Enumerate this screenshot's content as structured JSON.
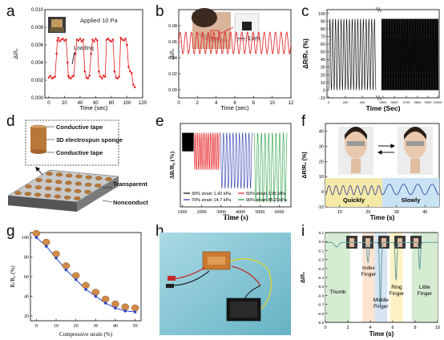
{
  "panel_labels": [
    "a",
    "b",
    "c",
    "d",
    "e",
    "f",
    "g",
    "h",
    "i"
  ],
  "chart_data": [
    {
      "id": "a",
      "type": "line",
      "annotation": "Applied 10 Pa",
      "arrow_label": "Loading",
      "xlabel": "Time (sec)",
      "ylabel": "ΔI/I₀",
      "xlim": [
        -5,
        120
      ],
      "ylim": [
        0,
        0.01
      ],
      "xticks": [
        "0",
        "20",
        "40",
        "60",
        "80",
        "100",
        "120"
      ],
      "yticks": [
        "0.000",
        "0.002",
        "0.004",
        "0.006",
        "0.008",
        "0.010"
      ],
      "color": "#e41a1c",
      "x": [
        0,
        2,
        4,
        6,
        8,
        10,
        11,
        12,
        14,
        16,
        18,
        20,
        22,
        24,
        25,
        26,
        28,
        30,
        32,
        34,
        36,
        38,
        40,
        42,
        44,
        46,
        48,
        50,
        52,
        54,
        56,
        58,
        60,
        62,
        64,
        66,
        68,
        70,
        72,
        74,
        76,
        78,
        80,
        82,
        84,
        86,
        88,
        90,
        92,
        94,
        96,
        98,
        100,
        102,
        104,
        106,
        108,
        110
      ],
      "y": [
        0.0023,
        0.0025,
        0.0022,
        0.0023,
        0.0024,
        0.005,
        0.0065,
        0.0068,
        0.0064,
        0.0066,
        0.0067,
        0.0065,
        0.0066,
        0.004,
        0.0025,
        0.0023,
        0.0022,
        0.0024,
        0.0025,
        0.005,
        0.0066,
        0.0065,
        0.0067,
        0.0064,
        0.0066,
        0.003,
        0.0023,
        0.0022,
        0.0025,
        0.005,
        0.0066,
        0.0064,
        0.0067,
        0.0065,
        0.003,
        0.0024,
        0.0022,
        0.0025,
        0.0024,
        0.0066,
        0.0067,
        0.0065,
        0.0064,
        0.0066,
        0.003,
        0.0023,
        0.0022,
        0.0024,
        0.0068,
        0.0066,
        0.0065,
        0.0067,
        0.006,
        0.0035,
        0.003,
        0.0028,
        0.0015,
        0.0012
      ]
    },
    {
      "id": "b",
      "type": "line",
      "scale_label": "1 cm",
      "xlabel": "Time (sec)",
      "ylabel": "ΔI/I₀",
      "xlim": [
        0,
        12
      ],
      "ylim": [
        -0.01,
        0.1
      ],
      "xticks": [
        "0",
        "2",
        "4",
        "6",
        "8",
        "10",
        "12"
      ],
      "yticks": [
        "0.00",
        "0.02",
        "0.04",
        "0.06",
        "0.08"
      ],
      "color": "#e41a1c",
      "cycles": 20,
      "y_min": 0.045,
      "y_max": 0.072
    },
    {
      "id": "c",
      "type": "line",
      "xlabel": "Time (Sec)",
      "ylabel": "ΔR/R₀ (%)",
      "ylim": [
        -10,
        105
      ],
      "xticks": [
        "0",
        "200",
        "400",
        "5500",
        "9600",
        "9700",
        "9800",
        "9900",
        "10000"
      ],
      "yticks": [
        "-10",
        "0",
        "10",
        "20",
        "30",
        "40",
        "50",
        "60",
        "70",
        "80",
        "90",
        "100"
      ],
      "color": "#000000",
      "left_cycles": 17,
      "right_cycles": 120,
      "y_min": 0,
      "y_max": 93
    },
    {
      "id": "e",
      "type": "line",
      "xlabel": "Time (s)",
      "ylabel": "ΔR/R₀ (%)",
      "xlim": [
        900,
        6600
      ],
      "xticks": [
        "1000",
        "2000",
        "3000",
        "4000",
        "5000",
        "6000"
      ],
      "series": [
        {
          "name": "30% strain 1.42 kPa",
          "color": "#000000",
          "x_start": 1000,
          "x_end": 1580,
          "y_min": -40,
          "y_max": -20,
          "cycles": 30
        },
        {
          "name": "50% strain 3.95 kPa",
          "color": "#e41a1c",
          "x_start": 1600,
          "x_end": 2920,
          "y_min": -60,
          "y_max": -20,
          "cycles": 14
        },
        {
          "name": "70% strain 14.7 kPa",
          "color": "#2b37b0",
          "x_start": 2960,
          "x_end": 4600,
          "y_min": -80,
          "y_max": -20,
          "cycles": 10
        },
        {
          "name": "90% strain 85.21kPa",
          "color": "#1e9e3a",
          "x_start": 4700,
          "x_end": 6400,
          "y_min": -95,
          "y_max": -20,
          "cycles": 9
        }
      ]
    },
    {
      "id": "f",
      "type": "line",
      "xlabel": "Time (s)",
      "ylabel": "ΔR/R₀ (%)",
      "xlim": [
        5,
        45
      ],
      "ylim": [
        -10,
        45
      ],
      "xticks": [
        "10",
        "20",
        "30",
        "40"
      ],
      "yticks": [
        "-10",
        "0",
        "10",
        "20",
        "30",
        "40"
      ],
      "region_labels": [
        "Quickly",
        "Slowly"
      ],
      "region_colors": [
        "#f5e9a8",
        "#c9e3f4"
      ],
      "color": "#2a3a9a"
    },
    {
      "id": "g",
      "type": "scatter",
      "xlabel": "Compressive strain (%)",
      "ylabel": "Rᵢ/R₀ (%)",
      "xlim": [
        -3,
        53
      ],
      "ylim": [
        15,
        105
      ],
      "xticks": [
        "0",
        "10",
        "20",
        "30",
        "40",
        "50"
      ],
      "yticks": [
        "20",
        "40",
        "60",
        "80",
        "100"
      ],
      "color": "#2b47c7",
      "x": [
        0,
        5,
        10,
        15,
        20,
        25,
        30,
        35,
        40,
        45,
        50
      ],
      "y": [
        100,
        91,
        79,
        67,
        57,
        47,
        40,
        33,
        28,
        25,
        24
      ]
    },
    {
      "id": "i",
      "type": "line",
      "xlabel": "Time (s)",
      "ylabel": "ΔI/I₀",
      "xlim": [
        0,
        10
      ],
      "ylim": [
        -0.9,
        0.1
      ],
      "xticks": [
        "0",
        "2",
        "4",
        "6",
        "8",
        "10"
      ],
      "yticks": [
        "-0.9",
        "-0.8",
        "-0.7",
        "-0.6",
        "-0.5",
        "-0.4",
        "-0.3",
        "-0.2",
        "-0.1",
        "0.0",
        "0.1"
      ],
      "color": "#5f9ea0",
      "regions": [
        {
          "label": "Thumb",
          "x0": 0,
          "x1": 2.2,
          "color": "#d6ecd2"
        },
        {
          "label": "Index Finger",
          "x0": 3.3,
          "x1": 4.4,
          "color": "#fbe3d0"
        },
        {
          "label": "Middle Finger",
          "x0": 4.4,
          "x1": 5.5,
          "color": "#d6e4f3"
        },
        {
          "label": "Ring Finger",
          "x0": 5.8,
          "x1": 6.9,
          "color": "#fdf2c4"
        },
        {
          "label": "Little Finger",
          "x0": 7.7,
          "x1": 10,
          "color": "#d6ecd2"
        }
      ]
    }
  ],
  "diagram_d": {
    "labels": [
      "Conductive tape",
      "3D electrospun sponge",
      "Conductive tape",
      "Transparent tape",
      "Nonconductive foam"
    ]
  }
}
